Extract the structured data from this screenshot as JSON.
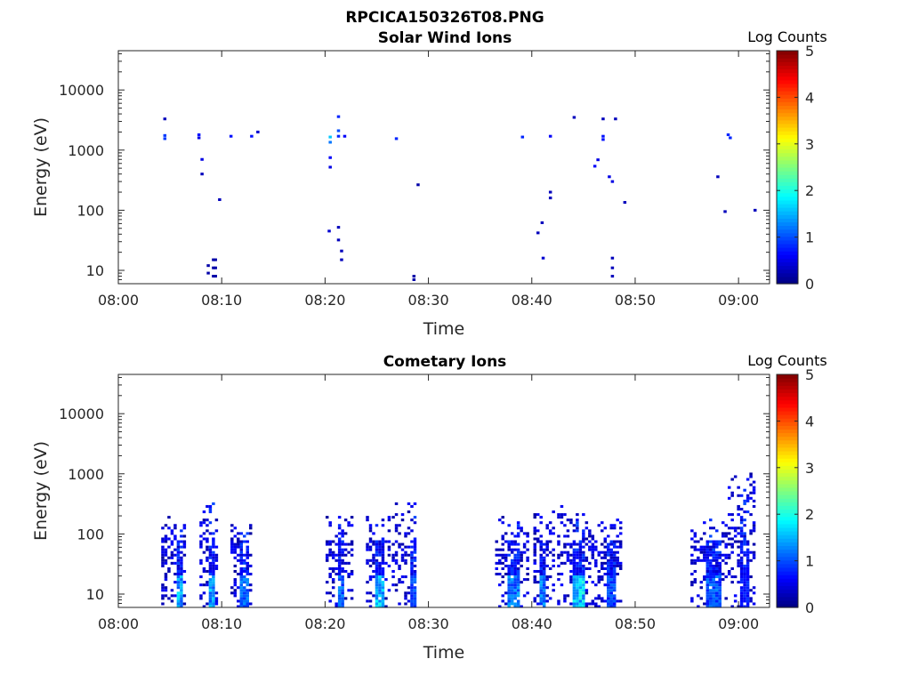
{
  "figure": {
    "title": "RPCICA150326T08.PNG"
  },
  "colormap": [
    "#00007f",
    "#0000ff",
    "#007fff",
    "#00ffff",
    "#7fff7f",
    "#ffff00",
    "#ff7f00",
    "#ff0000",
    "#7f0000"
  ],
  "chart_data": [
    {
      "type": "heatmap",
      "title": "Solar Wind Ions",
      "xlabel": "Time",
      "ylabel": "Energy (eV)",
      "x_unit": "minutes after 08:00",
      "xlim": [
        0,
        63
      ],
      "ylim": [
        6,
        45000
      ],
      "y_scale": "log",
      "x_ticks": [
        0,
        10,
        20,
        30,
        40,
        50,
        60
      ],
      "x_tick_labels": [
        "08:00",
        "08:10",
        "08:20",
        "08:30",
        "08:40",
        "08:50",
        "09:00"
      ],
      "y_ticks": [
        10,
        100,
        1000,
        10000
      ],
      "y_tick_labels": [
        "10",
        "100",
        "1000",
        "10000"
      ],
      "colorbar": {
        "label": "Log Counts",
        "range": [
          0,
          5
        ],
        "ticks": [
          "0",
          "1",
          "2",
          "3",
          "4",
          "5"
        ]
      },
      "cells": [
        {
          "t": 4.5,
          "e": 3300,
          "c": 0.3
        },
        {
          "t": 4.5,
          "e": 1750,
          "c": 0.9
        },
        {
          "t": 4.5,
          "e": 1550,
          "c": 0.9
        },
        {
          "t": 7.8,
          "e": 1800,
          "c": 0.7
        },
        {
          "t": 7.8,
          "e": 1600,
          "c": 0.5
        },
        {
          "t": 8.1,
          "e": 700,
          "c": 0.5
        },
        {
          "t": 8.1,
          "e": 400,
          "c": 0.3
        },
        {
          "t": 10.9,
          "e": 1700,
          "c": 0.7
        },
        {
          "t": 12.9,
          "e": 1700,
          "c": 0.7
        },
        {
          "t": 13.5,
          "e": 2000,
          "c": 0.4
        },
        {
          "t": 9.8,
          "e": 150,
          "c": 0.3
        },
        {
          "t": 8.7,
          "e": 12,
          "c": 0.2
        },
        {
          "t": 8.7,
          "e": 9,
          "c": 0.2
        },
        {
          "t": 9.2,
          "e": 15,
          "c": 0.2
        },
        {
          "t": 9.2,
          "e": 11,
          "c": 0.2
        },
        {
          "t": 9.2,
          "e": 8,
          "c": 0.2
        },
        {
          "t": 9.4,
          "e": 15,
          "c": 0.2
        },
        {
          "t": 9.4,
          "e": 11,
          "c": 0.2
        },
        {
          "t": 9.4,
          "e": 8,
          "c": 0.2
        },
        {
          "t": 20.5,
          "e": 1650,
          "c": 1.6
        },
        {
          "t": 20.5,
          "e": 1350,
          "c": 1.2
        },
        {
          "t": 20.5,
          "e": 750,
          "c": 0.6
        },
        {
          "t": 20.5,
          "e": 520,
          "c": 0.5
        },
        {
          "t": 21.3,
          "e": 3600,
          "c": 0.8
        },
        {
          "t": 21.3,
          "e": 2100,
          "c": 1.0
        },
        {
          "t": 21.3,
          "e": 1700,
          "c": 0.8
        },
        {
          "t": 21.9,
          "e": 1700,
          "c": 0.6
        },
        {
          "t": 20.4,
          "e": 45,
          "c": 0.4
        },
        {
          "t": 21.3,
          "e": 52,
          "c": 0.3
        },
        {
          "t": 21.3,
          "e": 32,
          "c": 0.3
        },
        {
          "t": 21.6,
          "e": 21,
          "c": 0.3
        },
        {
          "t": 21.6,
          "e": 15,
          "c": 0.3
        },
        {
          "t": 26.9,
          "e": 1550,
          "c": 0.8
        },
        {
          "t": 29.0,
          "e": 265,
          "c": 0.2
        },
        {
          "t": 28.6,
          "e": 8,
          "c": 0.2
        },
        {
          "t": 28.6,
          "e": 7,
          "c": 0.2
        },
        {
          "t": 39.1,
          "e": 1650,
          "c": 0.8
        },
        {
          "t": 41.8,
          "e": 1700,
          "c": 0.6
        },
        {
          "t": 44.1,
          "e": 3500,
          "c": 0.3
        },
        {
          "t": 46.9,
          "e": 3300,
          "c": 0.3
        },
        {
          "t": 48.1,
          "e": 3300,
          "c": 0.3
        },
        {
          "t": 46.9,
          "e": 1700,
          "c": 0.7
        },
        {
          "t": 46.9,
          "e": 1500,
          "c": 0.7
        },
        {
          "t": 46.4,
          "e": 690,
          "c": 0.5
        },
        {
          "t": 46.1,
          "e": 540,
          "c": 0.6
        },
        {
          "t": 47.5,
          "e": 360,
          "c": 0.5
        },
        {
          "t": 47.8,
          "e": 300,
          "c": 0.5
        },
        {
          "t": 49.0,
          "e": 135,
          "c": 0.3
        },
        {
          "t": 41.8,
          "e": 200,
          "c": 0.3
        },
        {
          "t": 41.8,
          "e": 160,
          "c": 0.3
        },
        {
          "t": 41.0,
          "e": 62,
          "c": 0.3
        },
        {
          "t": 40.6,
          "e": 42,
          "c": 0.3
        },
        {
          "t": 41.1,
          "e": 16,
          "c": 0.4
        },
        {
          "t": 47.8,
          "e": 16,
          "c": 0.3
        },
        {
          "t": 47.8,
          "e": 11,
          "c": 0.3
        },
        {
          "t": 47.8,
          "e": 8,
          "c": 0.3
        },
        {
          "t": 58.0,
          "e": 360,
          "c": 0.3
        },
        {
          "t": 59.0,
          "e": 1800,
          "c": 0.8
        },
        {
          "t": 59.2,
          "e": 1600,
          "c": 0.8
        },
        {
          "t": 58.7,
          "e": 95,
          "c": 0.3
        },
        {
          "t": 61.6,
          "e": 100,
          "c": 0.3
        }
      ]
    },
    {
      "type": "heatmap",
      "title": "Cometary Ions",
      "xlabel": "Time",
      "ylabel": "Energy (eV)",
      "x_unit": "minutes after 08:00",
      "xlim": [
        0,
        63
      ],
      "ylim": [
        6,
        45000
      ],
      "y_scale": "log",
      "x_ticks": [
        0,
        10,
        20,
        30,
        40,
        50,
        60
      ],
      "x_tick_labels": [
        "08:00",
        "08:10",
        "08:20",
        "08:30",
        "08:40",
        "08:50",
        "09:00"
      ],
      "y_ticks": [
        10,
        100,
        1000,
        10000
      ],
      "y_tick_labels": [
        "10",
        "100",
        "1000",
        "10000"
      ],
      "colorbar": {
        "label": "Log Counts",
        "range": [
          0,
          5
        ],
        "ticks": [
          "0",
          "1",
          "2",
          "3",
          "4",
          "5"
        ]
      },
      "bursts": [
        {
          "t0": 4.3,
          "t1": 6.5,
          "ehi": 230,
          "core": [
            5.6,
            6.2
          ],
          "peak": 1.8
        },
        {
          "t0": 8.0,
          "t1": 9.8,
          "ehi": 330,
          "core": [
            8.8,
            9.4
          ],
          "peak": 1.8
        },
        {
          "t0": 11.0,
          "t1": 13.0,
          "ehi": 200,
          "core": [
            11.9,
            12.7
          ],
          "peak": 1.4
        },
        {
          "t0": 20.2,
          "t1": 22.8,
          "ehi": 190,
          "core": [
            21.3,
            21.9
          ],
          "peak": 1.4
        },
        {
          "t0": 24.1,
          "t1": 26.4,
          "ehi": 200,
          "core": [
            24.8,
            25.8
          ],
          "peak": 2.0
        },
        {
          "t0": 26.6,
          "t1": 28.9,
          "ehi": 320,
          "core": [
            28.3,
            28.8
          ],
          "peak": 1.3
        },
        {
          "t0": 36.6,
          "t1": 39.8,
          "ehi": 200,
          "core": [
            37.5,
            38.9
          ],
          "peak": 1.5
        },
        {
          "t0": 40.3,
          "t1": 42.2,
          "ehi": 250,
          "core": [
            40.6,
            41.4
          ],
          "peak": 1.5
        },
        {
          "t0": 42.6,
          "t1": 45.3,
          "ehi": 320,
          "core": [
            43.8,
            45.0
          ],
          "peak": 2.1
        },
        {
          "t0": 45.6,
          "t1": 48.6,
          "ehi": 210,
          "core": [
            47.3,
            48.1
          ],
          "peak": 1.2
        },
        {
          "t0": 55.5,
          "t1": 58.9,
          "ehi": 180,
          "core": [
            56.8,
            58.4
          ],
          "peak": 1.3
        },
        {
          "t0": 59.1,
          "t1": 61.6,
          "ehi": 1100,
          "core": [
            60.2,
            60.9
          ],
          "peak": 0.9
        }
      ]
    }
  ]
}
